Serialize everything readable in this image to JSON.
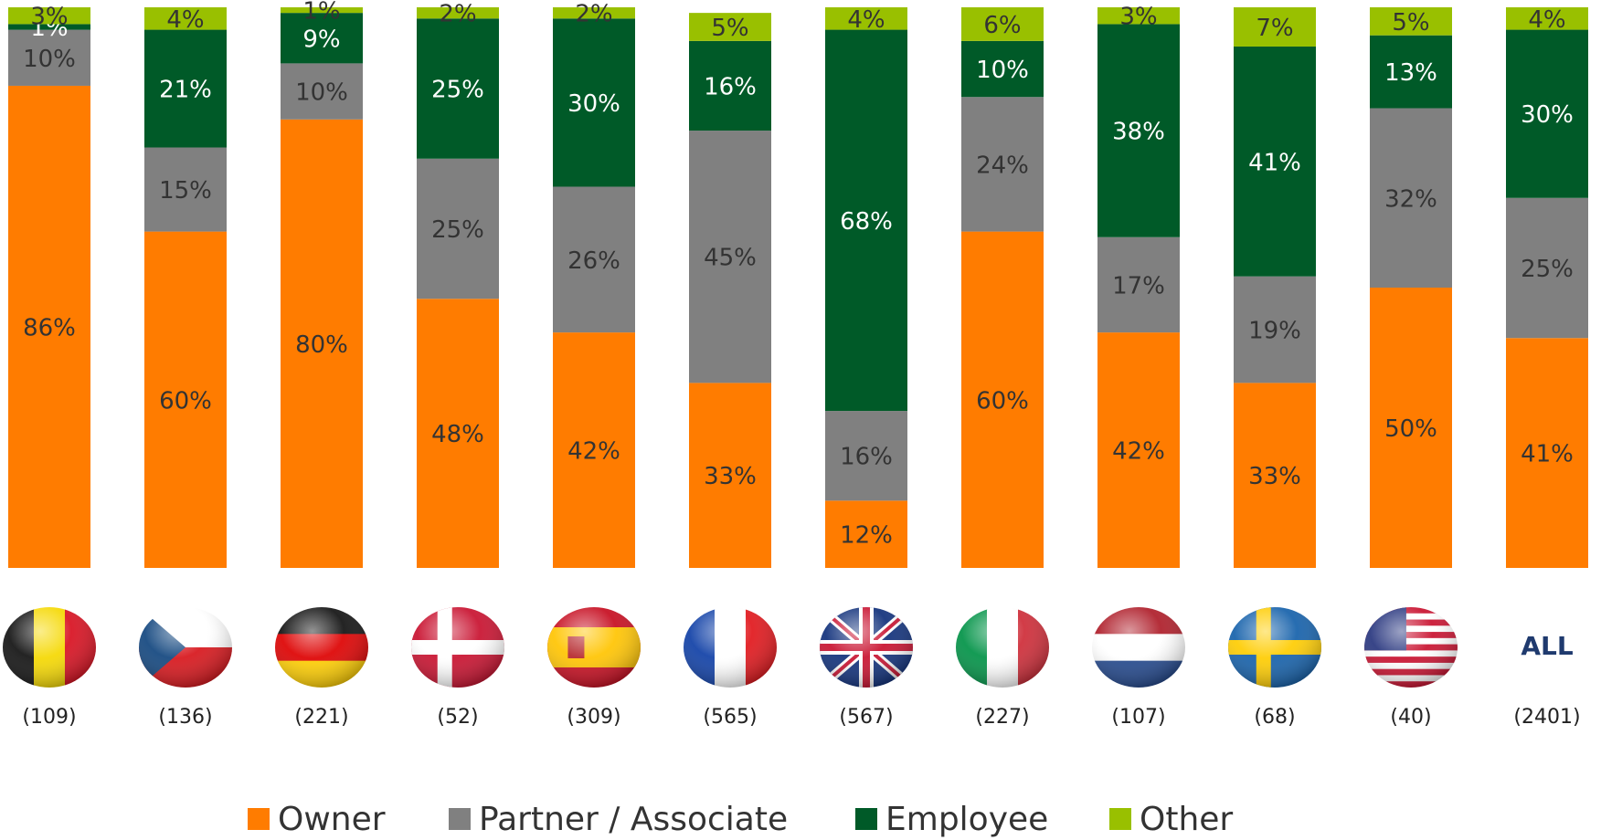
{
  "chart_data": {
    "type": "stacked_bar",
    "categories": [
      null,
      null,
      null,
      null,
      null,
      null,
      null,
      null,
      null,
      null,
      null,
      "ALL"
    ],
    "sample_sizes": [
      "(109)",
      "(136)",
      "(221)",
      "(52)",
      "(309)",
      "(565)",
      "(567)",
      "(227)",
      "(107)",
      "(68)",
      "(40)",
      "(2401)"
    ],
    "ylim": [
      0,
      100
    ],
    "series": [
      {
        "name": "Owner",
        "color": "#ff7c00",
        "values": [
          86,
          60,
          80,
          48,
          42,
          33,
          12,
          60,
          42,
          33,
          50,
          41
        ],
        "value_labels": [
          "86%",
          "60%",
          "80%",
          "48%",
          "42%",
          "33%",
          "12%",
          "60%",
          "42%",
          "33%",
          "50%",
          "41%"
        ]
      },
      {
        "name": "Partner / Associate",
        "color": "#808080",
        "values": [
          10,
          15,
          10,
          25,
          26,
          45,
          16,
          24,
          17,
          19,
          32,
          25
        ],
        "value_labels": [
          "10%",
          "15%",
          "10%",
          "25%",
          "26%",
          "45%",
          "16%",
          "24%",
          "17%",
          "19%",
          "32%",
          "25%"
        ]
      },
      {
        "name": "Employee",
        "color": "#005a28",
        "values": [
          1,
          21,
          9,
          25,
          30,
          16,
          68,
          10,
          38,
          41,
          13,
          30
        ],
        "value_labels": [
          "1%",
          "21%",
          "9%",
          "25%",
          "30%",
          "16%",
          "68%",
          "10%",
          "38%",
          "41%",
          "13%",
          "30%"
        ]
      },
      {
        "name": "Other",
        "color": "#99c000",
        "values": [
          3,
          4,
          1,
          2,
          2,
          5,
          4,
          6,
          3,
          7,
          5,
          4
        ],
        "value_labels": [
          "3%",
          "4%",
          "1%",
          "2%",
          "2%",
          "5%",
          "4%",
          "6%",
          "3%",
          "7%",
          "5%",
          "4%"
        ]
      }
    ],
    "legend": "bottom"
  }
}
